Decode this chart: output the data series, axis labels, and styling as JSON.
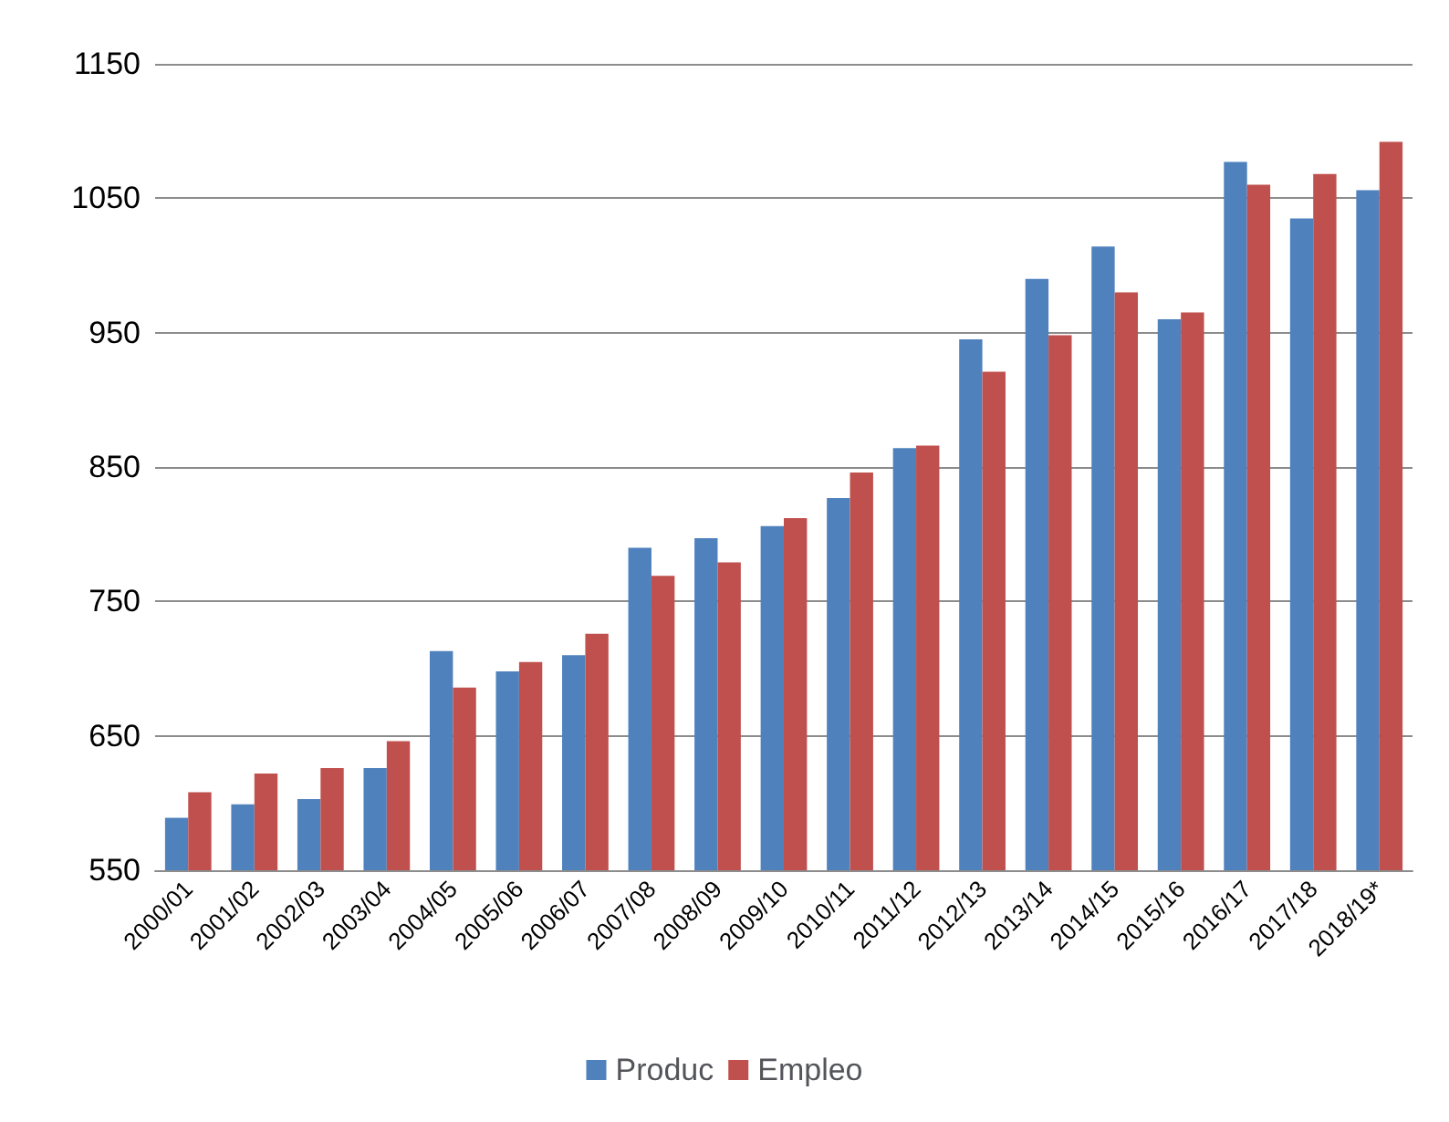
{
  "chart_data": {
    "type": "bar",
    "categories": [
      "2000/01",
      "2001/02",
      "2002/03",
      "2003/04",
      "2004/05",
      "2005/06",
      "2006/07",
      "2007/08",
      "2008/09",
      "2009/10",
      "2010/11",
      "2011/12",
      "2012/13",
      "2013/14",
      "2014/15",
      "2015/16",
      "2016/17",
      "2017/18",
      "2018/19*"
    ],
    "series": [
      {
        "name": "Produc",
        "color": "#4f81bd",
        "values": [
          589,
          599,
          603,
          626,
          713,
          698,
          710,
          790,
          797,
          806,
          827,
          864,
          945,
          990,
          1014,
          960,
          1077,
          1035,
          1056
        ]
      },
      {
        "name": "Empleo",
        "color": "#c0504d",
        "values": [
          608,
          622,
          626,
          646,
          686,
          705,
          726,
          769,
          779,
          812,
          846,
          866,
          921,
          948,
          980,
          965,
          1060,
          1068,
          1092
        ]
      }
    ],
    "ylim": [
      550,
      1150
    ],
    "yticks": [
      550,
      650,
      750,
      850,
      950,
      1050,
      1150
    ],
    "grid": "y",
    "legend": "bottom"
  }
}
